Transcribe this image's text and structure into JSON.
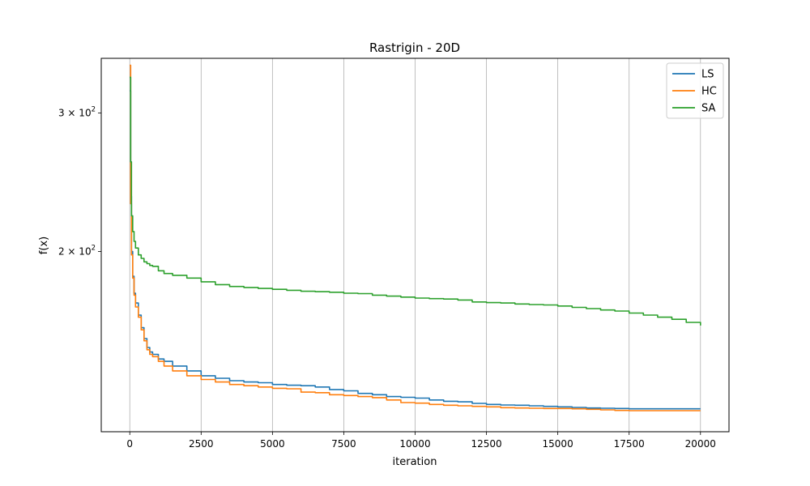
{
  "chart_data": {
    "type": "line",
    "title": "Rastrigin - 20D",
    "xlabel": "iteration",
    "ylabel": "f(x)",
    "xlim": [
      -1000,
      21000
    ],
    "ylim": [
      118,
      352
    ],
    "yscale": "log",
    "grid": "x-only",
    "legend_position": "top-right",
    "xticks": [
      0,
      2500,
      5000,
      7500,
      10000,
      12500,
      15000,
      17500,
      20000
    ],
    "xtick_labels": [
      "0",
      "2500",
      "5000",
      "7500",
      "10000",
      "12500",
      "15000",
      "17500",
      "20000"
    ],
    "yticks": [
      {
        "value": 300,
        "mantissa": "3",
        "base": "10",
        "exponent": "2"
      },
      {
        "value": 200,
        "mantissa": "2",
        "base": "10",
        "exponent": "2"
      }
    ],
    "series": [
      {
        "name": "LS",
        "color": "#1f77b4",
        "x": [
          0,
          30,
          60,
          100,
          150,
          200,
          300,
          400,
          500,
          600,
          700,
          800,
          1000,
          1200,
          1500,
          2000,
          2500,
          3000,
          3500,
          4000,
          4500,
          5000,
          5500,
          6000,
          6500,
          7000,
          7500,
          8000,
          8500,
          9000,
          9500,
          10000,
          10500,
          11000,
          11500,
          12000,
          12500,
          13000,
          13500,
          14000,
          14500,
          15000,
          15500,
          16000,
          16500,
          17000,
          17500,
          18000,
          18500,
          19000,
          19500,
          20000
        ],
        "y": [
          320,
          235,
          200,
          186,
          177,
          172,
          166,
          160,
          155,
          151,
          149,
          148,
          146,
          145,
          143,
          141,
          139,
          138,
          137,
          136.5,
          136.2,
          135.5,
          135.2,
          135,
          134.5,
          133.5,
          133,
          132,
          131.5,
          130.8,
          130.5,
          130.2,
          129.5,
          129,
          128.8,
          128.2,
          127.8,
          127.6,
          127.5,
          127.3,
          127.1,
          126.9,
          126.7,
          126.5,
          126.4,
          126.3,
          126.2,
          126.2,
          126.2,
          126.2,
          126.2,
          126.2
        ]
      },
      {
        "name": "HC",
        "color": "#ff7f0e",
        "x": [
          0,
          30,
          60,
          100,
          150,
          200,
          300,
          400,
          500,
          600,
          700,
          800,
          1000,
          1200,
          1500,
          2000,
          2500,
          3000,
          3500,
          4000,
          4500,
          5000,
          5500,
          6000,
          6500,
          7000,
          7500,
          8000,
          8500,
          9000,
          9500,
          10000,
          10500,
          11000,
          11500,
          12000,
          12500,
          13000,
          13500,
          14000,
          14500,
          15000,
          15500,
          16000,
          16500,
          17000,
          17500,
          18000,
          18500,
          19000,
          19500,
          20000
        ],
        "y": [
          345,
          230,
          198,
          185,
          176,
          170,
          165,
          159,
          154,
          150,
          148,
          147,
          145,
          143,
          141,
          139,
          137.5,
          136.5,
          135.5,
          135,
          134.5,
          134,
          133.8,
          132.5,
          132.3,
          131.5,
          131.2,
          130.8,
          130.4,
          129.5,
          128.5,
          128.3,
          127.8,
          127.5,
          127.3,
          127.1,
          126.9,
          126.6,
          126.5,
          126.4,
          126.3,
          126.3,
          126.2,
          126.0,
          125.8,
          125.6,
          125.5,
          125.5,
          125.5,
          125.5,
          125.5,
          125.5
        ]
      },
      {
        "name": "SA",
        "color": "#2ca02c",
        "x": [
          0,
          30,
          60,
          100,
          150,
          200,
          300,
          400,
          500,
          600,
          700,
          800,
          1000,
          1200,
          1500,
          2000,
          2500,
          3000,
          3500,
          4000,
          4500,
          5000,
          5500,
          6000,
          6500,
          7000,
          7500,
          8000,
          8500,
          9000,
          9500,
          10000,
          10500,
          11000,
          11500,
          12000,
          12500,
          13000,
          13500,
          14000,
          14500,
          15000,
          15500,
          16000,
          16500,
          17000,
          17500,
          18000,
          18500,
          19000,
          19500,
          20000
        ],
        "y": [
          333,
          260,
          222,
          212,
          206,
          202,
          198,
          196,
          194,
          193,
          192,
          191.5,
          189,
          187.5,
          186.5,
          185,
          183,
          181.5,
          180.5,
          180,
          179.5,
          179,
          178.5,
          178,
          177.8,
          177.5,
          177,
          176.8,
          176,
          175.5,
          175,
          174.5,
          174.2,
          174,
          173.5,
          172.5,
          172.2,
          172,
          171.5,
          171.2,
          171,
          170.5,
          169.8,
          169.2,
          168.5,
          168,
          167,
          166,
          165,
          164,
          162.5,
          161
        ]
      }
    ]
  }
}
